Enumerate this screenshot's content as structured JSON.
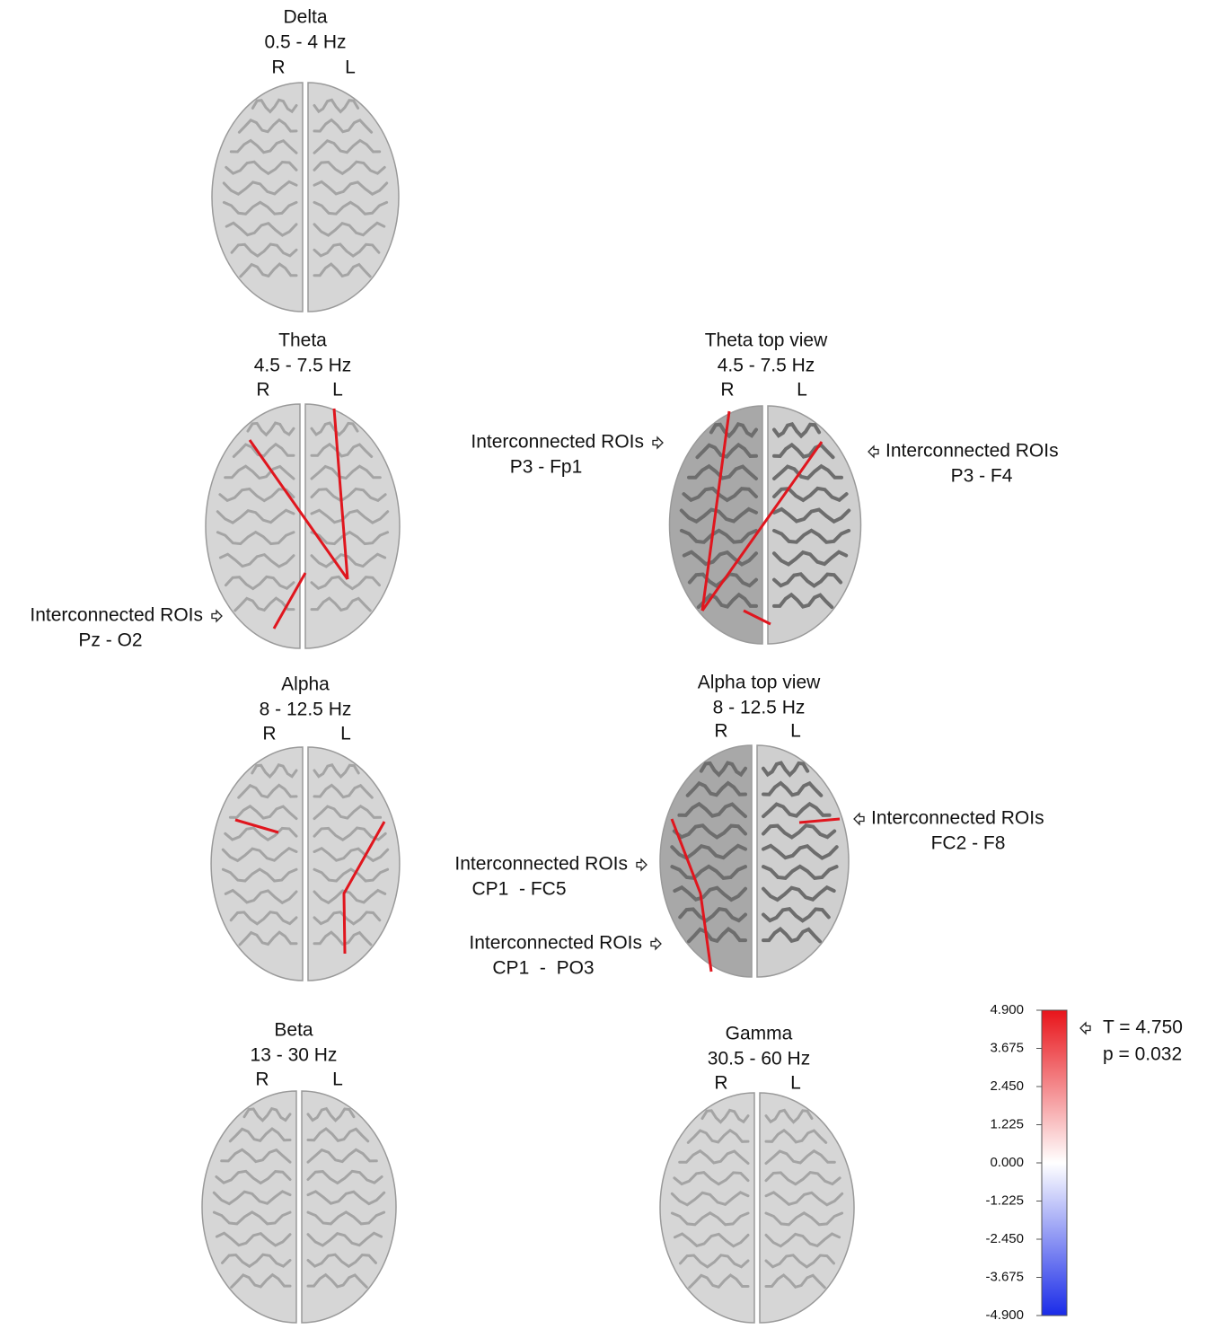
{
  "panels": [
    {
      "title": "Delta",
      "range": "0.5 - 4 Hz",
      "right_label": "R",
      "left_label": "L"
    },
    {
      "title": "Theta",
      "range": "4.5 - 7.5 Hz",
      "right_label": "R",
      "left_label": "L"
    },
    {
      "title": "Theta top view",
      "range": "4.5 - 7.5 Hz",
      "right_label": "R",
      "left_label": "L"
    },
    {
      "title": "Alpha",
      "range": "8 - 12.5 Hz",
      "right_label": "R",
      "left_label": "L"
    },
    {
      "title": "Alpha top view",
      "range": "8 - 12.5 Hz",
      "right_label": "R",
      "left_label": "L"
    },
    {
      "title": "Beta",
      "range": "13 - 30 Hz",
      "right_label": "R",
      "left_label": "L"
    },
    {
      "title": "Gamma",
      "range": "30.5 - 60 Hz",
      "right_label": "R",
      "left_label": "L"
    }
  ],
  "annotations": [
    {
      "label": "Interconnected ROIs",
      "pair": "Pz - O2"
    },
    {
      "label": "Interconnected ROIs",
      "pair": "P3 - Fp1"
    },
    {
      "label": "Interconnected ROIs",
      "pair": "P3 - F4"
    },
    {
      "label": "Interconnected ROIs",
      "pair": "FC2 - F8"
    },
    {
      "label": "Interconnected ROIs",
      "pair": "CP1  - FC5"
    },
    {
      "label": "Interconnected ROIs",
      "pair": "CP1  -  PO3"
    }
  ],
  "colorbar": {
    "ticks": [
      "4.900",
      "3.675",
      "2.450",
      "1.225",
      "0.000",
      "-1.225",
      "-2.450",
      "-3.675",
      "-4.900"
    ],
    "marker": "T = 4.750",
    "p_value": "p = 0.032"
  }
}
